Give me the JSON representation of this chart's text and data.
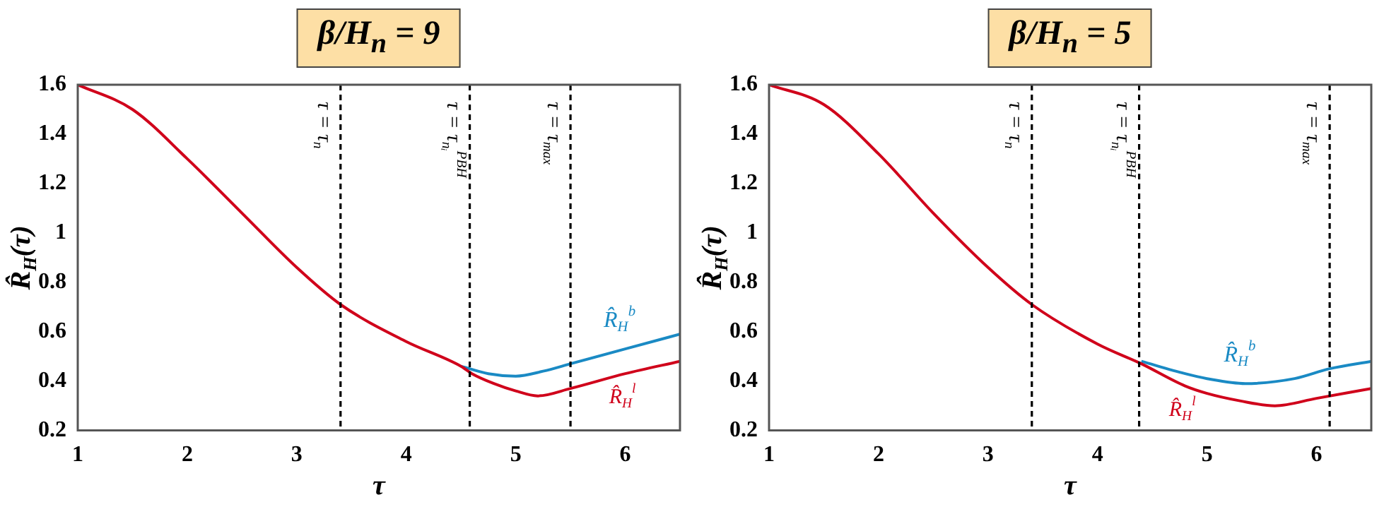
{
  "chart_data": [
    {
      "type": "line",
      "title": "β/H$_{n}$ = 9",
      "xlabel": "τ",
      "ylabel": "R̂$_{H}$(τ)",
      "xlim": [
        1,
        6.5
      ],
      "ylim": [
        0.2,
        1.6
      ],
      "xticks": [
        1,
        2,
        3,
        4,
        5,
        6
      ],
      "yticks": [
        0.2,
        0.4,
        0.6,
        0.8,
        1,
        1.2,
        1.4,
        1.6
      ],
      "series": [
        {
          "name": "R̂$_{H}$$^{b}$",
          "color": "#1a8ac4",
          "x": [
            4.5,
            4.75,
            5,
            5.25,
            5.5,
            6,
            6.5
          ],
          "values": [
            0.46,
            0.43,
            0.42,
            0.44,
            0.47,
            0.53,
            0.59
          ]
        },
        {
          "name": "R̂$_{H}$$^{l}$",
          "color": "#d0021b",
          "x": [
            1,
            1.5,
            2,
            2.5,
            3,
            3.4,
            4,
            4.5,
            4.6,
            4.8,
            5,
            5.2,
            5.5,
            6,
            6.5
          ],
          "values": [
            1.6,
            1.5,
            1.3,
            1.08,
            0.86,
            0.71,
            0.56,
            0.46,
            0.43,
            0.39,
            0.36,
            0.34,
            0.37,
            0.43,
            0.48
          ]
        }
      ],
      "ref_lines": [
        {
          "axis": "x",
          "value": 3.4,
          "label": "τ = τ$_{n}$",
          "color": "#000000",
          "line_style": "dashed"
        },
        {
          "axis": "x",
          "value": 4.58,
          "label": "τ = τ$_{nᵢ}$$^{PBH}$",
          "color": "#000000",
          "line_style": "dashed"
        },
        {
          "axis": "x",
          "value": 5.5,
          "label": "τ = τ$_{max}$",
          "color": "#000000",
          "line_style": "dashed"
        }
      ]
    },
    {
      "type": "line",
      "title": "β/H$_{n}$ = 5",
      "xlabel": "τ",
      "ylabel": "R̂$_{H}$(τ)",
      "xlim": [
        1,
        6.5
      ],
      "ylim": [
        0.2,
        1.6
      ],
      "xticks": [
        1,
        2,
        3,
        4,
        5,
        6
      ],
      "yticks": [
        0.2,
        0.4,
        0.6,
        0.8,
        1,
        1.2,
        1.4,
        1.6
      ],
      "series": [
        {
          "name": "R̂$_{H}$$^{b}$",
          "color": "#1a8ac4",
          "x": [
            4.4,
            4.8,
            5,
            5.35,
            5.8,
            6.12,
            6.5
          ],
          "values": [
            0.48,
            0.43,
            0.41,
            0.39,
            0.41,
            0.45,
            0.48
          ]
        },
        {
          "name": "R̂$_{H}$$^{l}$",
          "color": "#d0021b",
          "x": [
            1,
            1.5,
            2,
            2.5,
            3,
            3.4,
            4,
            4.4,
            4.8,
            5,
            5.3,
            5.62,
            6,
            6.5
          ],
          "values": [
            1.6,
            1.52,
            1.32,
            1.08,
            0.86,
            0.71,
            0.55,
            0.47,
            0.38,
            0.35,
            0.32,
            0.3,
            0.33,
            0.37
          ]
        }
      ],
      "ref_lines": [
        {
          "axis": "x",
          "value": 3.4,
          "label": "τ = τ$_{n}$",
          "color": "#000000",
          "line_style": "dashed"
        },
        {
          "axis": "x",
          "value": 4.38,
          "label": "τ = τ$_{nᵢ}$$^{PBH}$",
          "color": "#000000",
          "line_style": "dashed"
        },
        {
          "axis": "x",
          "value": 6.12,
          "label": "τ = τ$_{max}$",
          "color": "#000000",
          "line_style": "dashed"
        }
      ]
    }
  ]
}
